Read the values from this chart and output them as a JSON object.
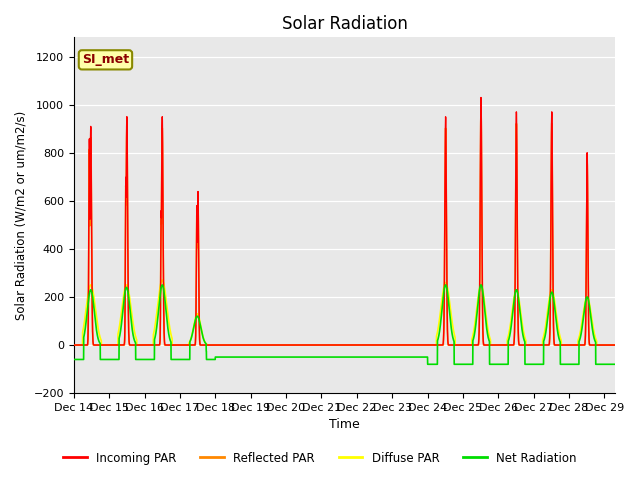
{
  "title": "Solar Radiation",
  "xlabel": "Time",
  "ylabel": "Solar Radiation (W/m2 or um/m2/s)",
  "ylim": [
    -200,
    1280
  ],
  "yticks": [
    -200,
    0,
    200,
    400,
    600,
    800,
    1000,
    1200
  ],
  "plot_bg_color": "#e8e8e8",
  "fig_bg_color": "#ffffff",
  "station_label": "SI_met",
  "legend_entries": [
    "Incoming PAR",
    "Reflected PAR",
    "Diffuse PAR",
    "Net Radiation"
  ],
  "line_colors": [
    "#ff0000",
    "#ff8800",
    "#ffff00",
    "#00dd00"
  ],
  "x_tick_labels": [
    "Dec 14",
    "Dec 15",
    "Dec 16",
    "Dec 17",
    "Dec 18",
    "Dec 19",
    "Dec 20",
    "Dec 21",
    "Dec 22",
    "Dec 23",
    "Dec 24",
    "Dec 25",
    "Dec 26",
    "Dec 27",
    "Dec 28",
    "Dec 29"
  ],
  "n_days": 16,
  "points_per_day": 288
}
